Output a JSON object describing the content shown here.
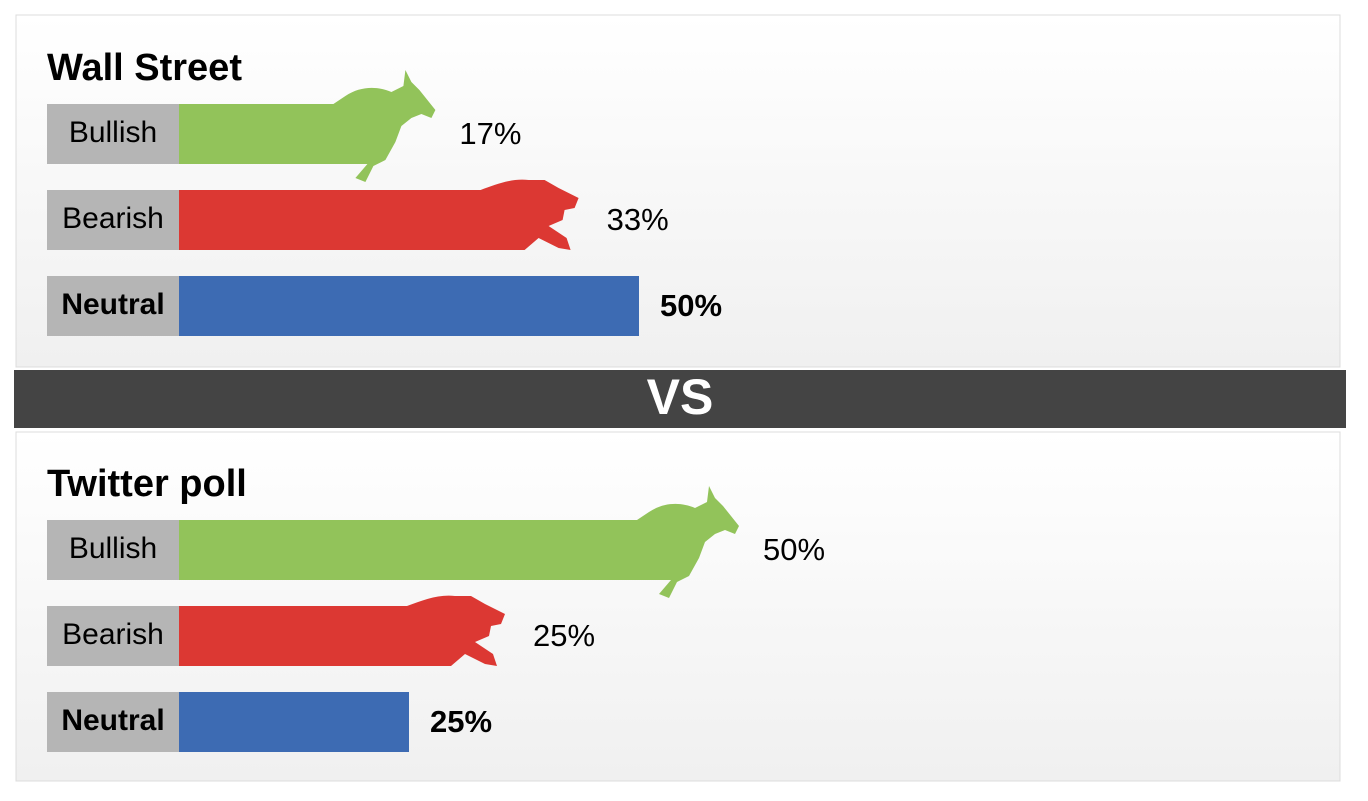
{
  "chart_data": [
    {
      "type": "bar",
      "title": "Wall Street",
      "categories": [
        "Bullish",
        "Bearish",
        "Neutral"
      ],
      "values": [
        17,
        33,
        50
      ],
      "value_labels": [
        "17%",
        "33%",
        "50%"
      ],
      "colors": [
        "#92c35a",
        "#dc3833",
        "#3d6bb3"
      ]
    },
    {
      "type": "bar",
      "title": "Twitter poll",
      "categories": [
        "Bullish",
        "Bearish",
        "Neutral"
      ],
      "values": [
        50,
        25,
        25
      ],
      "value_labels": [
        "50%",
        "25%",
        "25%"
      ],
      "colors": [
        "#92c35a",
        "#dc3833",
        "#3d6bb3"
      ]
    }
  ],
  "divider_label": "VS"
}
